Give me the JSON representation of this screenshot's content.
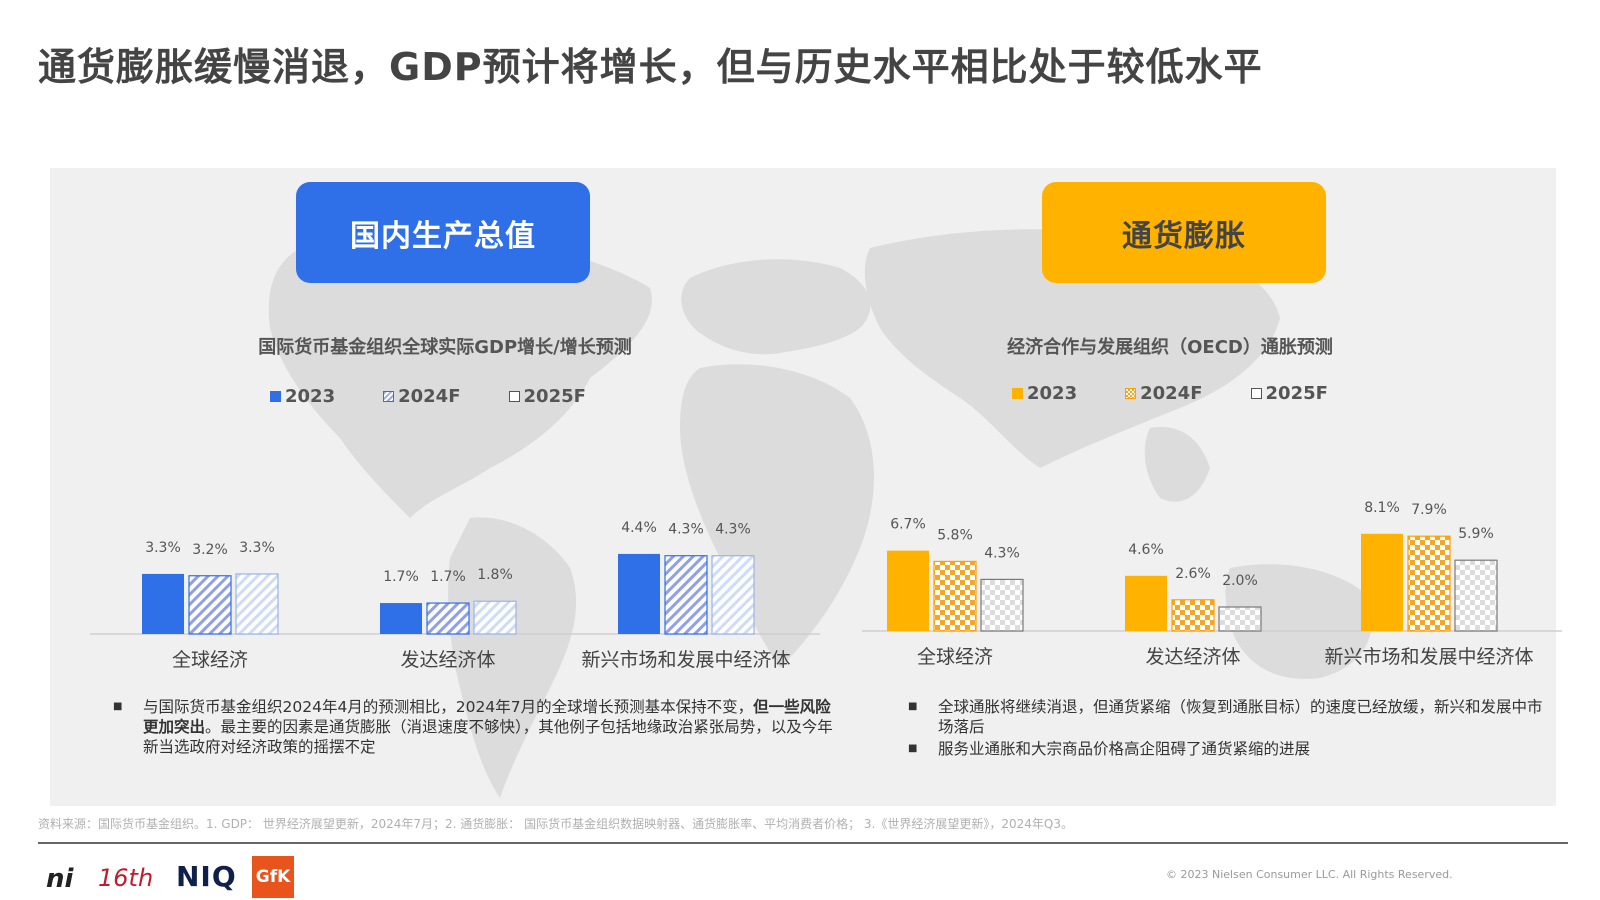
{
  "header": {
    "title": "通货膨胀缓慢消退，GDP预计将增长，但与历史水平相比处于较低水平"
  },
  "gdp_section": {
    "pill_label": "国内生产总值",
    "bullets": [
      {
        "plain_start": "与国际货币基金组织2024年4月的预测相比，2024年7月的全球增长预测基本保持不变，",
        "bold": "但一些风险更加突出",
        "plain_end": "。最主要的因素是通货膨胀（消退速度不够快），其他例子包括地缘政治紧张局势，以及今年新当选政府对经济政策的摇摆不定"
      }
    ]
  },
  "inflation_section": {
    "pill_label": "通货膨胀",
    "bullets": [
      {
        "text": "全球通胀将继续消退，但通货紧缩（恢复到通胀目标）的速度已经放缓，新兴和发展中市场落后"
      },
      {
        "text": "服务业通胀和大宗商品价格高企阻碍了通货紧缩的进展"
      }
    ]
  },
  "colors": {
    "gdp": "#2f6fe8",
    "inflation": "#ffb300",
    "axis": "#cfcfcf"
  },
  "icons": {
    "bullet": "square-bullet-icon"
  },
  "chart_data": [
    {
      "type": "bar",
      "title": "国际货币基金组织全球实际GDP增长/增长预测",
      "categories": [
        "全球经济",
        "发达经济体",
        "新兴市场和发展中经济体"
      ],
      "series": [
        {
          "name": "2023",
          "values": [
            3.3,
            1.7,
            4.4
          ],
          "labels": [
            "3.3%",
            "1.7%",
            "4.4%"
          ],
          "fill": "solid"
        },
        {
          "name": "2024F",
          "values": [
            3.2,
            1.7,
            4.3
          ],
          "labels": [
            "3.2%",
            "1.7%",
            "4.3%"
          ],
          "fill": "diagonal"
        },
        {
          "name": "2025F",
          "values": [
            3.3,
            1.8,
            4.3
          ],
          "labels": [
            "3.3%",
            "1.8%",
            "4.3%"
          ],
          "fill": "light-diagonal"
        }
      ],
      "legend": "top",
      "grid": false
    },
    {
      "type": "bar",
      "title": "经济合作与发展组织（OECD）通胀预测",
      "categories": [
        "全球经济",
        "发达经济体",
        "新兴市场和发展中经济体"
      ],
      "series": [
        {
          "name": "2023",
          "values": [
            6.7,
            4.6,
            8.1
          ],
          "labels": [
            "6.7%",
            "4.6%",
            "8.1%"
          ],
          "fill": "solid"
        },
        {
          "name": "2024F",
          "values": [
            5.8,
            2.6,
            7.9
          ],
          "labels": [
            "5.8%",
            "2.6%",
            "7.9%"
          ],
          "fill": "checker"
        },
        {
          "name": "2025F",
          "values": [
            4.3,
            2.0,
            5.9
          ],
          "labels": [
            "4.3%",
            "2.0%",
            "5.9%"
          ],
          "fill": "light-checker"
        }
      ],
      "legend": "top",
      "grid": false
    }
  ],
  "footer": {
    "source": "资料来源：国际货币基金组织。1. GDP： 世界经济展望更新，2024年7月；2. 通货膨胀： 国际货币基金组织数据映射器、通货膨胀率、平均消费者价格； 3.《世界经济展望更新》，2024年Q3。",
    "copyright": "© 2023 Nielsen Consumer LLC. All Rights Reserved.",
    "logos": {
      "ni": "ni",
      "anniv": "16th",
      "niq": "NIQ",
      "gfk": "GfK"
    }
  }
}
